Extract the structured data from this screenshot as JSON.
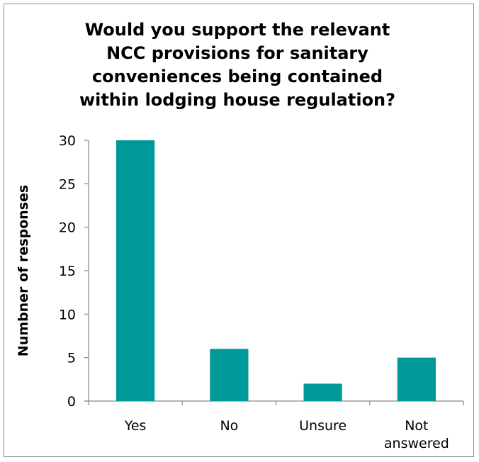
{
  "chart_data": {
    "type": "bar",
    "title_lines": [
      "Would you support the relevant",
      "NCC provisions for sanitary",
      "conveniences being contained",
      "within lodging house regulation?"
    ],
    "categories": [
      [
        "Yes"
      ],
      [
        "No"
      ],
      [
        "Unsure"
      ],
      [
        "Not",
        "answered"
      ]
    ],
    "values": [
      30,
      6,
      2,
      5
    ],
    "ylabel": "Numbner of responses",
    "xlabel": "",
    "ylim": [
      0,
      30
    ],
    "yticks": [
      0,
      5,
      10,
      15,
      20,
      25,
      30
    ],
    "grid": false,
    "legend": "none",
    "bar_color": "#009999",
    "axis_color": "#868686"
  }
}
